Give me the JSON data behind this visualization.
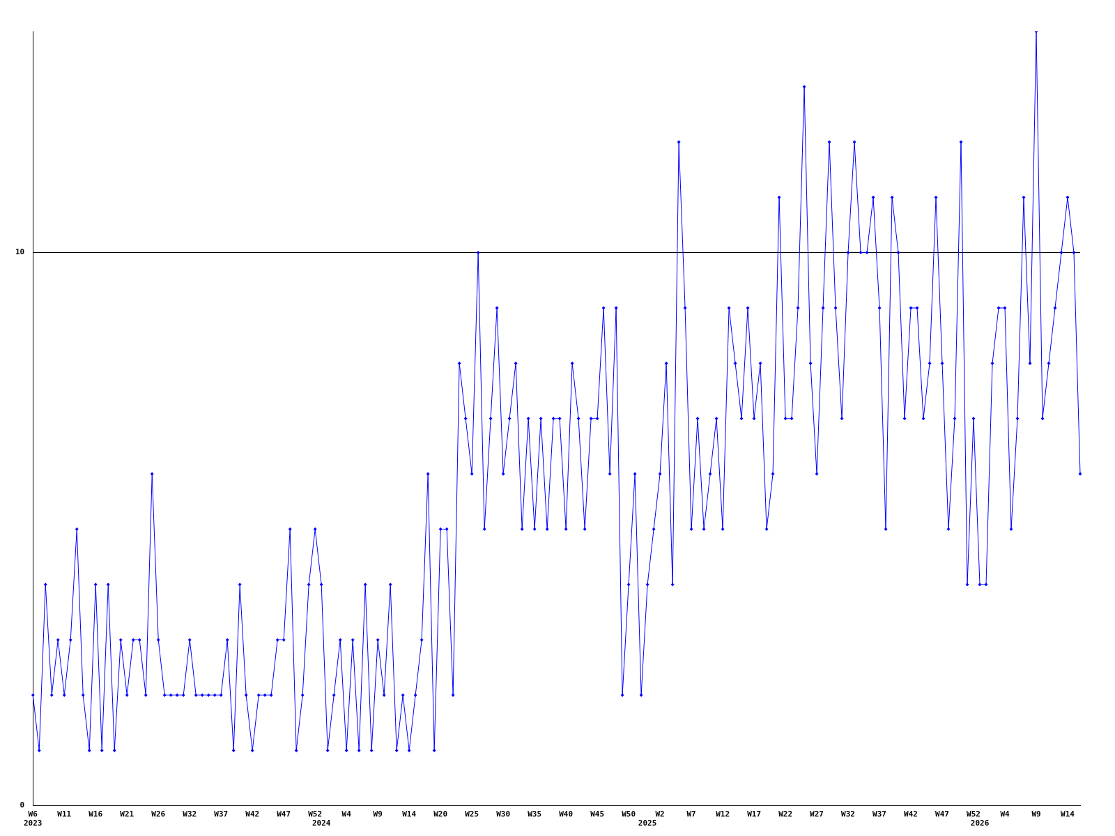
{
  "chart_data": {
    "type": "line",
    "categories": [
      "W6\n2023",
      null,
      null,
      null,
      null,
      "W11",
      null,
      null,
      null,
      null,
      "W16",
      null,
      null,
      null,
      null,
      "W21",
      null,
      null,
      null,
      null,
      "W26",
      null,
      null,
      null,
      null,
      "W32",
      null,
      null,
      null,
      null,
      "W37",
      null,
      null,
      null,
      null,
      "W42",
      null,
      null,
      null,
      null,
      "W47",
      null,
      null,
      null,
      null,
      "W52",
      "\n2024",
      null,
      null,
      null,
      "W4",
      null,
      null,
      null,
      null,
      "W9",
      null,
      null,
      null,
      null,
      "W14",
      null,
      null,
      null,
      null,
      "W20",
      null,
      null,
      null,
      null,
      "W25",
      null,
      null,
      null,
      null,
      "W30",
      null,
      null,
      null,
      null,
      "W35",
      null,
      null,
      null,
      null,
      "W40",
      null,
      null,
      null,
      null,
      "W45",
      null,
      null,
      null,
      null,
      "W50",
      null,
      null,
      "\n2025",
      null,
      "W2",
      null,
      null,
      null,
      null,
      "W7",
      null,
      null,
      null,
      null,
      "W12",
      null,
      null,
      null,
      null,
      "W17",
      null,
      null,
      null,
      null,
      "W22",
      null,
      null,
      null,
      null,
      "W27",
      null,
      null,
      null,
      null,
      "W32",
      null,
      null,
      null,
      null,
      "W37",
      null,
      null,
      null,
      null,
      "W42",
      null,
      null,
      null,
      null,
      "W47",
      null,
      null,
      null,
      null,
      "W52",
      "\n2026",
      null,
      null,
      null,
      "W4",
      null,
      null,
      null,
      null,
      "W9",
      null,
      null,
      null,
      null,
      "W14",
      null,
      null
    ],
    "series": [
      {
        "color": "#0000ff",
        "values": [
          2,
          1,
          4,
          2,
          3,
          2,
          3,
          5,
          2,
          1,
          4,
          1,
          4,
          1,
          3,
          2,
          3,
          3,
          2,
          6,
          3,
          2,
          2,
          2,
          2,
          3,
          2,
          2,
          2,
          2,
          2,
          3,
          1,
          4,
          2,
          1,
          2,
          2,
          2,
          3,
          3,
          5,
          1,
          2,
          4,
          5,
          4,
          1,
          2,
          3,
          1,
          3,
          1,
          4,
          1,
          3,
          2,
          4,
          1,
          2,
          1,
          2,
          3,
          6,
          1,
          5,
          5,
          2,
          8,
          7,
          6,
          10,
          5,
          7,
          9,
          6,
          7,
          8,
          5,
          7,
          5,
          7,
          5,
          7,
          7,
          5,
          8,
          7,
          5,
          7,
          7,
          9,
          6,
          9,
          2,
          4,
          6,
          2,
          4,
          5,
          6,
          8,
          4,
          12,
          9,
          5,
          7,
          5,
          6,
          7,
          5,
          9,
          8,
          7,
          9,
          7,
          8,
          5,
          6,
          11,
          7,
          7,
          9,
          13,
          8,
          6,
          9,
          12,
          9,
          7,
          10,
          12,
          10,
          10,
          11,
          9,
          5,
          11,
          10,
          7,
          9,
          9,
          7,
          8,
          11,
          8,
          5,
          7,
          12,
          4,
          7,
          4,
          4,
          8,
          9,
          9,
          5,
          7,
          11,
          8,
          14,
          7,
          8,
          9,
          10,
          11,
          10,
          6
        ]
      }
    ],
    "ylim": [
      0,
      14
    ],
    "yticks": [
      0,
      10
    ],
    "grid": "y",
    "legend": false,
    "marker": "diamond",
    "line_style": "solid"
  }
}
